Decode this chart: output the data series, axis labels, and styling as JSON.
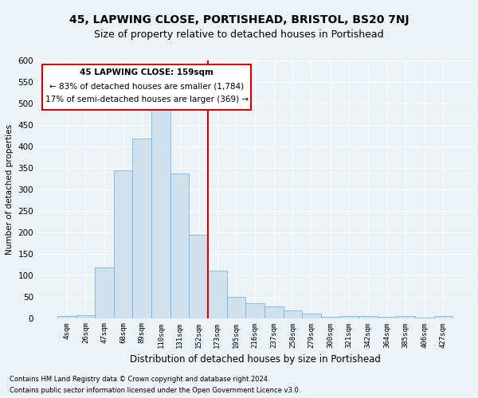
{
  "title": "45, LAPWING CLOSE, PORTISHEAD, BRISTOL, BS20 7NJ",
  "subtitle": "Size of property relative to detached houses in Portishead",
  "xlabel": "Distribution of detached houses by size in Portishead",
  "ylabel": "Number of detached properties",
  "footnote1": "Contains HM Land Registry data © Crown copyright and database right 2024.",
  "footnote2": "Contains public sector information licensed under the Open Government Licence v3.0.",
  "annotation_line1": "45 LAPWING CLOSE: 159sqm",
  "annotation_line2": "← 83% of detached houses are smaller (1,784)",
  "annotation_line3": "17% of semi-detached houses are larger (369) →",
  "bar_color": "#cfe0ee",
  "bar_edge_color": "#6aaed6",
  "vline_color": "#cc0000",
  "vline_x": 7.5,
  "categories": [
    "4sqm",
    "26sqm",
    "47sqm",
    "68sqm",
    "89sqm",
    "110sqm",
    "131sqm",
    "152sqm",
    "173sqm",
    "195sqm",
    "216sqm",
    "237sqm",
    "258sqm",
    "279sqm",
    "300sqm",
    "321sqm",
    "342sqm",
    "364sqm",
    "385sqm",
    "406sqm",
    "427sqm"
  ],
  "values": [
    5,
    7,
    118,
    345,
    418,
    488,
    337,
    193,
    110,
    50,
    35,
    27,
    18,
    10,
    3,
    5,
    4,
    3,
    4,
    2,
    4
  ],
  "ylim": [
    0,
    600
  ],
  "yticks": [
    0,
    50,
    100,
    150,
    200,
    250,
    300,
    350,
    400,
    450,
    500,
    550,
    600
  ],
  "background_color": "#edf2f7",
  "title_fontsize": 10,
  "subtitle_fontsize": 9
}
